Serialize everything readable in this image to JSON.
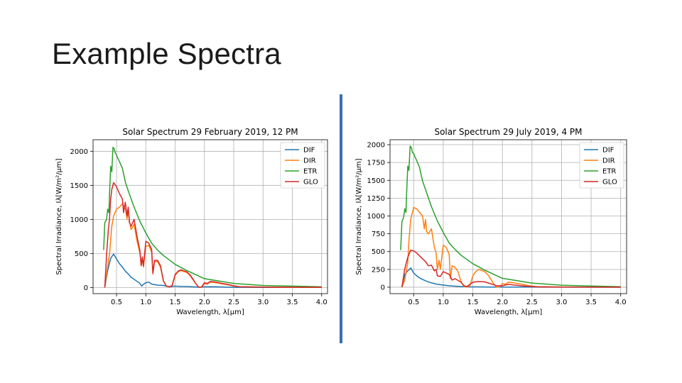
{
  "slide": {
    "title": "Example Spectra"
  },
  "colors": {
    "DIF": "#1f77b4",
    "DIR": "#ff7f0e",
    "ETR": "#2ca02c",
    "GLO": "#d62728",
    "divider": "#3c6eb4"
  },
  "chart_data": [
    {
      "type": "line",
      "title": "Solar Spectrum 29 February 2019, 12 PM",
      "xlabel": "Wavelength, λ[μm]",
      "ylabel": "Spectral Irradiance, Iλ[W/m²/μm]",
      "xlim": [
        0.1,
        4.1
      ],
      "ylim": [
        -90,
        2170
      ],
      "xticks": [
        0.5,
        1.0,
        1.5,
        2.0,
        2.5,
        3.0,
        3.5,
        4.0
      ],
      "xtick_labels": [
        "0.5",
        "1.0",
        "1.5",
        "2.0",
        "2.5",
        "3.0",
        "3.5",
        "4.0"
      ],
      "yticks": [
        0,
        500,
        1000,
        1500,
        2000
      ],
      "ytick_labels": [
        "0",
        "500",
        "1000",
        "1500",
        "2000"
      ],
      "grid": true,
      "legend_position": "top-right",
      "series": [
        {
          "name": "DIF",
          "x": [
            0.3,
            0.35,
            0.4,
            0.45,
            0.5,
            0.55,
            0.6,
            0.65,
            0.7,
            0.75,
            0.8,
            0.85,
            0.9,
            0.93,
            0.95,
            1.0,
            1.05,
            1.1,
            1.2,
            1.3,
            1.4,
            1.5,
            1.6,
            1.7,
            1.8,
            1.9,
            2.0,
            2.1,
            2.2,
            2.3,
            2.4,
            2.5,
            3.0,
            4.0
          ],
          "y": [
            0,
            250,
            430,
            490,
            420,
            350,
            300,
            240,
            200,
            150,
            120,
            90,
            60,
            20,
            40,
            70,
            80,
            50,
            35,
            30,
            10,
            20,
            15,
            15,
            10,
            5,
            10,
            12,
            10,
            8,
            5,
            3,
            2,
            1
          ]
        },
        {
          "name": "DIR",
          "x": [
            0.3,
            0.33,
            0.36,
            0.38,
            0.4,
            0.42,
            0.45,
            0.5,
            0.55,
            0.6,
            0.65,
            0.68,
            0.7,
            0.72,
            0.75,
            0.8,
            0.85,
            0.9,
            0.92,
            0.94,
            0.96,
            1.0,
            1.05,
            1.1,
            1.12,
            1.15,
            1.2,
            1.25,
            1.3,
            1.35,
            1.4,
            1.45,
            1.5,
            1.55,
            1.6,
            1.7,
            1.75,
            1.8,
            1.85,
            1.9,
            1.95,
            2.0,
            2.05,
            2.1,
            2.2,
            2.3,
            2.4,
            2.5,
            2.6,
            3.0,
            4.0
          ],
          "y": [
            0,
            200,
            380,
            480,
            700,
            900,
            1050,
            1150,
            1180,
            1230,
            1160,
            1000,
            1150,
            980,
            850,
            930,
            680,
            500,
            320,
            420,
            300,
            600,
            620,
            520,
            200,
            380,
            380,
            300,
            100,
            20,
            10,
            30,
            180,
            230,
            250,
            220,
            180,
            120,
            60,
            5,
            5,
            60,
            50,
            80,
            70,
            55,
            40,
            20,
            10,
            5,
            2
          ]
        },
        {
          "name": "ETR",
          "x": [
            0.28,
            0.3,
            0.33,
            0.35,
            0.37,
            0.38,
            0.4,
            0.42,
            0.44,
            0.46,
            0.48,
            0.5,
            0.52,
            0.55,
            0.6,
            0.65,
            0.7,
            0.75,
            0.8,
            0.9,
            1.0,
            1.1,
            1.2,
            1.3,
            1.5,
            1.7,
            2.0,
            2.5,
            3.0,
            3.5,
            4.0
          ],
          "y": [
            550,
            950,
            1000,
            1150,
            1100,
            1350,
            1780,
            1700,
            2060,
            2040,
            1970,
            1950,
            1900,
            1850,
            1750,
            1550,
            1420,
            1300,
            1180,
            970,
            800,
            650,
            550,
            470,
            340,
            250,
            130,
            60,
            30,
            20,
            10
          ]
        },
        {
          "name": "GLO",
          "x": [
            0.3,
            0.33,
            0.36,
            0.38,
            0.4,
            0.42,
            0.45,
            0.5,
            0.55,
            0.6,
            0.62,
            0.65,
            0.68,
            0.7,
            0.72,
            0.75,
            0.8,
            0.85,
            0.9,
            0.92,
            0.94,
            0.96,
            1.0,
            1.05,
            1.1,
            1.12,
            1.15,
            1.2,
            1.25,
            1.3,
            1.35,
            1.4,
            1.45,
            1.5,
            1.55,
            1.6,
            1.7,
            1.75,
            1.8,
            1.85,
            1.9,
            1.95,
            2.0,
            2.05,
            2.1,
            2.2,
            2.3,
            2.4,
            2.5,
            2.6,
            3.0,
            4.0
          ],
          "y": [
            0,
            480,
            850,
            1000,
            1300,
            1440,
            1540,
            1480,
            1380,
            1300,
            1100,
            1250,
            1050,
            1180,
            950,
            900,
            1000,
            750,
            540,
            320,
            450,
            320,
            680,
            650,
            560,
            210,
            400,
            400,
            320,
            100,
            20,
            10,
            30,
            190,
            240,
            260,
            230,
            190,
            130,
            60,
            5,
            5,
            70,
            60,
            90,
            80,
            60,
            45,
            25,
            12,
            6,
            3
          ]
        }
      ]
    },
    {
      "type": "line",
      "title": "Solar Spectrum 29 July 2019, 4 PM",
      "xlabel": "Wavelength, λ[μm]",
      "ylabel": "Spectral Irradiance, Iλ[W/m²/μm]",
      "xlim": [
        0.1,
        4.1
      ],
      "ylim": [
        -90,
        2070
      ],
      "xticks": [
        0.5,
        1.0,
        1.5,
        2.0,
        2.5,
        3.0,
        3.5,
        4.0
      ],
      "xtick_labels": [
        "0.5",
        "1.0",
        "1.5",
        "2.0",
        "2.5",
        "3.0",
        "3.5",
        "4.0"
      ],
      "yticks": [
        0,
        250,
        500,
        750,
        1000,
        1250,
        1500,
        1750,
        2000
      ],
      "ytick_labels": [
        "0",
        "250",
        "500",
        "750",
        "1000",
        "1250",
        "1500",
        "1750",
        "2000"
      ],
      "grid": true,
      "legend_position": "top-right",
      "series": [
        {
          "name": "DIF",
          "x": [
            0.3,
            0.35,
            0.4,
            0.45,
            0.5,
            0.55,
            0.6,
            0.7,
            0.8,
            0.9,
            1.0,
            1.1,
            1.2,
            1.4,
            1.6,
            1.8,
            2.0,
            2.5,
            3.0,
            4.0
          ],
          "y": [
            0,
            180,
            230,
            270,
            200,
            160,
            130,
            90,
            60,
            40,
            30,
            20,
            15,
            5,
            5,
            3,
            3,
            2,
            1,
            0
          ]
        },
        {
          "name": "DIR",
          "x": [
            0.3,
            0.35,
            0.4,
            0.42,
            0.45,
            0.5,
            0.55,
            0.6,
            0.65,
            0.68,
            0.7,
            0.72,
            0.75,
            0.8,
            0.85,
            0.88,
            0.9,
            0.93,
            0.95,
            1.0,
            1.05,
            1.1,
            1.12,
            1.15,
            1.2,
            1.25,
            1.3,
            1.35,
            1.4,
            1.45,
            1.5,
            1.55,
            1.6,
            1.7,
            1.75,
            1.8,
            1.85,
            1.9,
            1.95,
            2.0,
            2.05,
            2.1,
            2.2,
            2.3,
            2.4,
            2.5,
            2.6,
            3.0,
            4.0
          ],
          "y": [
            0,
            100,
            350,
            650,
            950,
            1120,
            1100,
            1050,
            1000,
            820,
            950,
            780,
            750,
            820,
            560,
            480,
            250,
            380,
            250,
            590,
            560,
            460,
            120,
            300,
            280,
            220,
            80,
            10,
            5,
            20,
            160,
            220,
            250,
            220,
            180,
            120,
            50,
            5,
            5,
            50,
            40,
            70,
            60,
            45,
            30,
            15,
            8,
            4,
            1
          ]
        },
        {
          "name": "ETR",
          "x": [
            0.28,
            0.3,
            0.33,
            0.35,
            0.37,
            0.38,
            0.4,
            0.42,
            0.44,
            0.46,
            0.48,
            0.5,
            0.52,
            0.55,
            0.6,
            0.65,
            0.7,
            0.75,
            0.8,
            0.9,
            1.0,
            1.1,
            1.2,
            1.3,
            1.5,
            1.7,
            2.0,
            2.5,
            3.0,
            3.5,
            4.0
          ],
          "y": [
            520,
            920,
            980,
            1100,
            1050,
            1300,
            1700,
            1640,
            1980,
            1960,
            1890,
            1880,
            1830,
            1780,
            1680,
            1490,
            1370,
            1250,
            1130,
            930,
            770,
            620,
            530,
            450,
            330,
            240,
            125,
            58,
            28,
            18,
            8
          ]
        },
        {
          "name": "GLO",
          "x": [
            0.3,
            0.35,
            0.4,
            0.45,
            0.5,
            0.55,
            0.6,
            0.65,
            0.7,
            0.75,
            0.8,
            0.85,
            0.88,
            0.9,
            0.95,
            1.0,
            1.05,
            1.1,
            1.15,
            1.2,
            1.3,
            1.35,
            1.4,
            1.5,
            1.6,
            1.7,
            1.8,
            1.9,
            2.0,
            2.1,
            2.2,
            2.4,
            2.6,
            3.0,
            4.0
          ],
          "y": [
            0,
            260,
            420,
            520,
            510,
            480,
            440,
            400,
            360,
            300,
            310,
            230,
            250,
            160,
            150,
            220,
            200,
            180,
            100,
            120,
            70,
            20,
            10,
            70,
            80,
            75,
            50,
            20,
            20,
            40,
            30,
            15,
            5,
            2,
            1
          ]
        }
      ]
    }
  ]
}
